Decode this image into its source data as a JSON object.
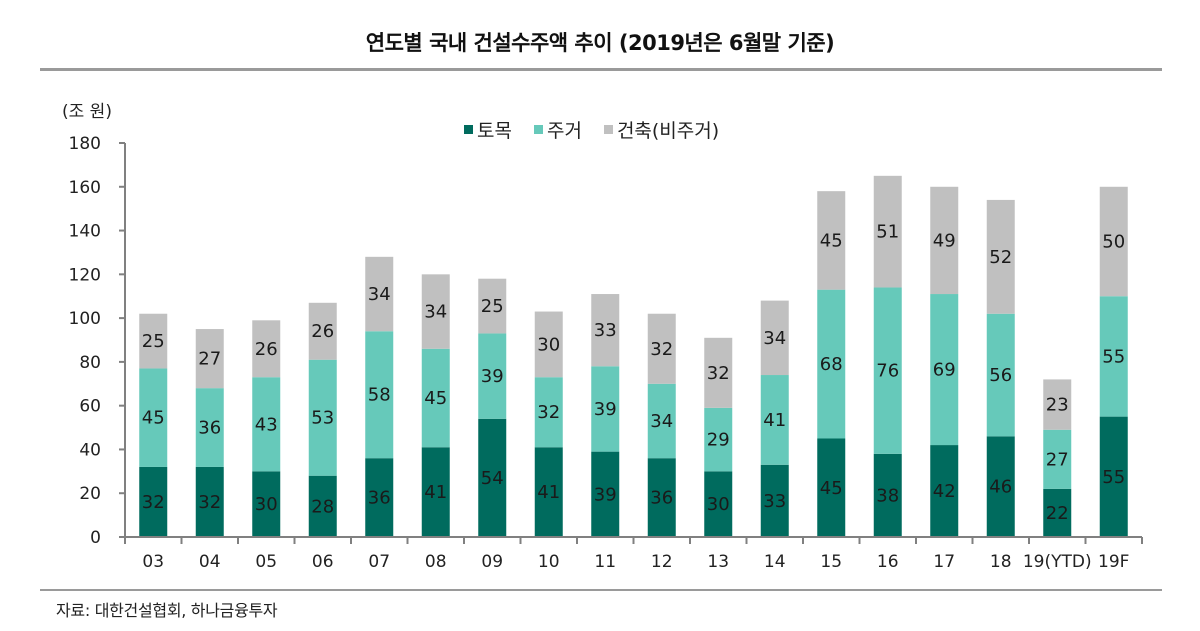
{
  "title": "연도별 국내 건설수주액 추이 (2019년은 6월말 기준)",
  "source": "자료: 대한건설협회, 하나금융투자",
  "colors": {
    "civil": "#006B5E",
    "residential": "#66C9BA",
    "building": "#C0C0C0",
    "axis": "#808080",
    "rule": "#9a9a9a"
  },
  "chart_data": {
    "type": "bar",
    "stacked": true,
    "title": "연도별 국내 건설수주액 추이 (2019년은 6월말 기준)",
    "xlabel": "",
    "ylabel": "(조 원)",
    "ylim": [
      0,
      180
    ],
    "yticks": [
      0,
      20,
      40,
      60,
      80,
      100,
      120,
      140,
      160,
      180
    ],
    "grid": false,
    "legend_position": "top-center",
    "categories": [
      "03",
      "04",
      "05",
      "06",
      "07",
      "08",
      "09",
      "10",
      "11",
      "12",
      "13",
      "14",
      "15",
      "16",
      "17",
      "18",
      "19(YTD)",
      "19F"
    ],
    "series": [
      {
        "name": "토목",
        "color": "#006B5E",
        "values": [
          32,
          32,
          30,
          28,
          36,
          41,
          54,
          41,
          39,
          36,
          30,
          33,
          45,
          38,
          42,
          46,
          22,
          55
        ]
      },
      {
        "name": "주거",
        "color": "#66C9BA",
        "values": [
          45,
          36,
          43,
          53,
          58,
          45,
          39,
          32,
          39,
          34,
          29,
          41,
          68,
          76,
          69,
          56,
          27,
          55
        ]
      },
      {
        "name": "건축(비주거)",
        "color": "#C0C0C0",
        "values": [
          25,
          27,
          26,
          26,
          34,
          34,
          25,
          30,
          33,
          32,
          32,
          34,
          45,
          51,
          49,
          52,
          23,
          50
        ]
      }
    ]
  }
}
